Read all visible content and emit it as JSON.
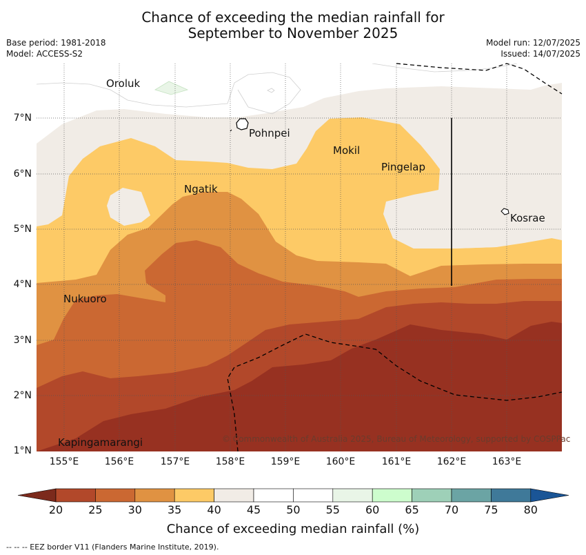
{
  "title_line1": "Chance of exceeding the median rainfall for",
  "title_line2": "September to November 2025",
  "base_period": "Base period: 1981-2018",
  "model": "Model: ACCESS-S2",
  "model_run": "Model run: 12/07/2025",
  "issued": "Issued: 14/07/2025",
  "lat_labels": [
    "7°N",
    "6°N",
    "5°N",
    "4°N",
    "3°N",
    "2°N",
    "1°N"
  ],
  "lon_labels": [
    "155°E",
    "156°E",
    "157°E",
    "158°E",
    "159°E",
    "160°E",
    "161°E",
    "162°E",
    "163°E"
  ],
  "places": {
    "oroluk": "Oroluk",
    "pohnpei": "Pohnpei",
    "mokil": "Mokil",
    "pingelap": "Pingelap",
    "ngatik": "Ngatik",
    "kosrae": "Kosrae",
    "nukuoro": "Nukuoro",
    "kapingamarangi": "Kapingamarangi"
  },
  "copyright": "© Commonwealth of Australia 2025, Bureau of Meteorology, supported by COSPPac",
  "colorbar": {
    "ticks": [
      "20",
      "25",
      "30",
      "35",
      "40",
      "45",
      "50",
      "55",
      "60",
      "65",
      "70",
      "75",
      "80"
    ],
    "colors": [
      "#7c2a1c",
      "#b2482a",
      "#cb6832",
      "#e09242",
      "#fdca66",
      "#f1ece6",
      "#ffffff",
      "#ffffff",
      "#e9f5e7",
      "#cdfdcd",
      "#9ed0b8",
      "#6ba4a4",
      "#3f7999",
      "#1a5596"
    ],
    "title": "Chance of exceeding median rainfall (%)"
  },
  "footnote": "--  --  -- EEZ border V11 (Flanders Marine Institute, 2019)."
}
